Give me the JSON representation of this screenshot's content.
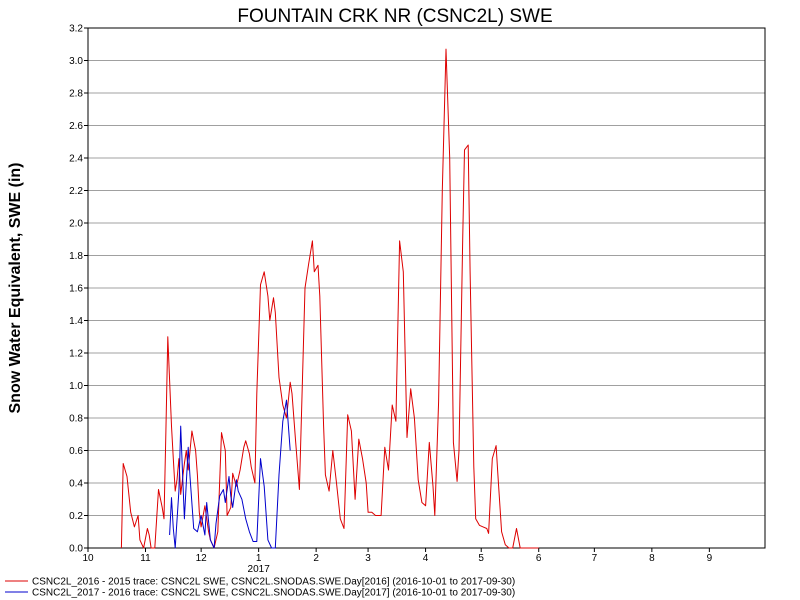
{
  "chart_data": {
    "type": "line",
    "title": "FOUNTAIN CRK NR (CSNC2L) SWE",
    "ylabel": "Snow Water Equivalent, SWE (in)",
    "xlabel": "",
    "ylim": [
      0,
      3.2
    ],
    "yticks": [
      "0.0",
      "0.2",
      "0.4",
      "0.6",
      "0.8",
      "1.0",
      "1.2",
      "1.4",
      "1.6",
      "1.8",
      "2.0",
      "2.2",
      "2.4",
      "2.6",
      "2.8",
      "3.0",
      "3.2"
    ],
    "xlim": [
      "2016-10-01",
      "2017-09-30"
    ],
    "xticks": [
      {
        "label": "10",
        "date": "2016-10-01"
      },
      {
        "label": "11",
        "date": "2016-11-01"
      },
      {
        "label": "12",
        "date": "2016-12-01"
      },
      {
        "label": "1",
        "date": "2017-01-01"
      },
      {
        "label": "2",
        "date": "2017-02-01"
      },
      {
        "label": "3",
        "date": "2017-03-01"
      },
      {
        "label": "4",
        "date": "2017-04-01"
      },
      {
        "label": "5",
        "date": "2017-05-01"
      },
      {
        "label": "6",
        "date": "2017-06-01"
      },
      {
        "label": "7",
        "date": "2017-07-01"
      },
      {
        "label": "8",
        "date": "2017-08-01"
      },
      {
        "label": "9",
        "date": "2017-09-01"
      }
    ],
    "year_label": "2017",
    "grid": true,
    "legend_position": "bottom",
    "series": [
      {
        "name": "CSNC2L_2016 - 2015 trace: CSNC2L SWE, CSNC2L.SNODAS.SWE.Day[2016] (2016-10-01 to 2017-09-30)",
        "color": "#dd0000",
        "x": [
          "2016-10-19",
          "2016-10-20",
          "2016-10-22",
          "2016-10-24",
          "2016-10-26",
          "2016-10-28",
          "2016-10-29",
          "2016-10-31",
          "2016-11-02",
          "2016-11-03",
          "2016-11-04",
          "2016-11-06",
          "2016-11-08",
          "2016-11-10",
          "2016-11-11",
          "2016-11-12",
          "2016-11-13",
          "2016-11-15",
          "2016-11-16",
          "2016-11-17",
          "2016-11-18",
          "2016-11-19",
          "2016-11-20",
          "2016-11-22",
          "2016-11-23",
          "2016-11-24",
          "2016-11-26",
          "2016-11-28",
          "2016-11-29",
          "2016-11-30",
          "2016-12-01",
          "2016-12-03",
          "2016-12-05",
          "2016-12-06",
          "2016-12-08",
          "2016-12-10",
          "2016-12-12",
          "2016-12-14",
          "2016-12-15",
          "2016-12-17",
          "2016-12-18",
          "2016-12-20",
          "2016-12-22",
          "2016-12-24",
          "2016-12-25",
          "2016-12-27",
          "2016-12-28",
          "2016-12-30",
          "2016-12-31",
          "2017-01-02",
          "2017-01-04",
          "2017-01-06",
          "2017-01-07",
          "2017-01-09",
          "2017-01-10",
          "2017-01-12",
          "2017-01-14",
          "2017-01-16",
          "2017-01-18",
          "2017-01-19",
          "2017-01-21",
          "2017-01-23",
          "2017-01-25",
          "2017-01-26",
          "2017-01-28",
          "2017-01-30",
          "2017-01-31",
          "2017-02-02",
          "2017-02-03",
          "2017-02-05",
          "2017-02-06",
          "2017-02-08",
          "2017-02-10",
          "2017-02-12",
          "2017-02-14",
          "2017-02-16",
          "2017-02-18",
          "2017-02-20",
          "2017-02-22",
          "2017-02-24",
          "2017-02-26",
          "2017-02-28",
          "2017-03-01",
          "2017-03-03",
          "2017-03-05",
          "2017-03-06",
          "2017-03-08",
          "2017-03-10",
          "2017-03-12",
          "2017-03-14",
          "2017-03-16",
          "2017-03-18",
          "2017-03-20",
          "2017-03-22",
          "2017-03-24",
          "2017-03-26",
          "2017-03-28",
          "2017-03-30",
          "2017-04-01",
          "2017-04-03",
          "2017-04-05",
          "2017-04-06",
          "2017-04-08",
          "2017-04-10",
          "2017-04-12",
          "2017-04-14",
          "2017-04-16",
          "2017-04-18",
          "2017-04-19",
          "2017-04-21",
          "2017-04-22",
          "2017-04-24",
          "2017-04-25",
          "2017-04-27",
          "2017-04-28",
          "2017-04-30",
          "2017-05-02",
          "2017-05-04",
          "2017-05-05",
          "2017-05-07",
          "2017-05-09",
          "2017-05-10",
          "2017-05-12",
          "2017-05-14",
          "2017-05-16",
          "2017-05-18",
          "2017-05-20",
          "2017-05-22",
          "2017-05-24",
          "2017-05-26",
          "2017-05-27",
          "2017-05-29",
          "2017-05-31",
          "2017-06-01"
        ],
        "y": [
          0.0,
          0.52,
          0.44,
          0.22,
          0.13,
          0.2,
          0.05,
          0.0,
          0.12,
          0.08,
          0.0,
          0.0,
          0.36,
          0.25,
          0.18,
          0.72,
          1.3,
          0.75,
          0.55,
          0.35,
          0.42,
          0.55,
          0.33,
          0.52,
          0.6,
          0.48,
          0.72,
          0.6,
          0.45,
          0.22,
          0.13,
          0.26,
          0.1,
          0.05,
          0.0,
          0.1,
          0.71,
          0.6,
          0.2,
          0.25,
          0.46,
          0.38,
          0.48,
          0.62,
          0.66,
          0.58,
          0.5,
          0.4,
          0.95,
          1.62,
          1.7,
          1.55,
          1.4,
          1.54,
          1.45,
          1.05,
          0.88,
          0.8,
          1.02,
          0.95,
          0.65,
          0.36,
          1.2,
          1.6,
          1.75,
          1.89,
          1.7,
          1.74,
          1.55,
          0.75,
          0.45,
          0.35,
          0.6,
          0.4,
          0.18,
          0.12,
          0.82,
          0.72,
          0.3,
          0.67,
          0.55,
          0.4,
          0.22,
          0.22,
          0.2,
          0.2,
          0.2,
          0.62,
          0.48,
          0.88,
          0.78,
          1.89,
          1.7,
          0.68,
          0.98,
          0.8,
          0.42,
          0.28,
          0.26,
          0.65,
          0.38,
          0.2,
          0.9,
          2.2,
          3.07,
          2.4,
          0.65,
          0.41,
          0.6,
          1.9,
          2.45,
          2.48,
          1.7,
          0.5,
          0.18,
          0.14,
          0.13,
          0.12,
          0.09,
          0.55,
          0.63,
          0.45,
          0.1,
          0.02,
          0.0,
          0.0,
          0.12,
          0.0,
          0.0,
          0.0,
          0.0,
          0.0,
          0.0,
          0.0
        ],
        "note_unused": ""
      },
      {
        "name": "CSNC2L_2017 - 2016 trace: CSNC2L SWE, CSNC2L.SNODAS.SWE.Day[2017] (2016-10-01 to 2017-09-30)",
        "color": "#0000cc",
        "x": [
          "2016-11-14",
          "2016-11-15",
          "2016-11-16",
          "2016-11-17",
          "2016-11-19",
          "2016-11-20",
          "2016-11-21",
          "2016-11-22",
          "2016-11-24",
          "2016-11-25",
          "2016-11-27",
          "2016-11-29",
          "2016-12-01",
          "2016-12-03",
          "2016-12-04",
          "2016-12-06",
          "2016-12-08",
          "2016-12-09",
          "2016-12-11",
          "2016-12-13",
          "2016-12-14",
          "2016-12-16",
          "2016-12-17",
          "2016-12-18",
          "2016-12-20",
          "2016-12-21",
          "2016-12-23",
          "2016-12-25",
          "2016-12-27",
          "2016-12-29",
          "2016-12-31",
          "2017-01-02",
          "2017-01-04",
          "2017-01-06",
          "2017-01-08",
          "2017-01-10",
          "2017-01-12",
          "2017-01-14",
          "2017-01-16",
          "2017-01-18"
        ],
        "y": [
          0.08,
          0.31,
          0.12,
          0.0,
          0.35,
          0.75,
          0.45,
          0.18,
          0.62,
          0.44,
          0.12,
          0.1,
          0.2,
          0.08,
          0.28,
          0.05,
          0.0,
          0.15,
          0.32,
          0.36,
          0.28,
          0.44,
          0.32,
          0.25,
          0.42,
          0.35,
          0.3,
          0.18,
          0.1,
          0.04,
          0.04,
          0.55,
          0.38,
          0.05,
          0.0,
          0.0,
          0.45,
          0.78,
          0.91,
          0.6
        ]
      }
    ]
  }
}
